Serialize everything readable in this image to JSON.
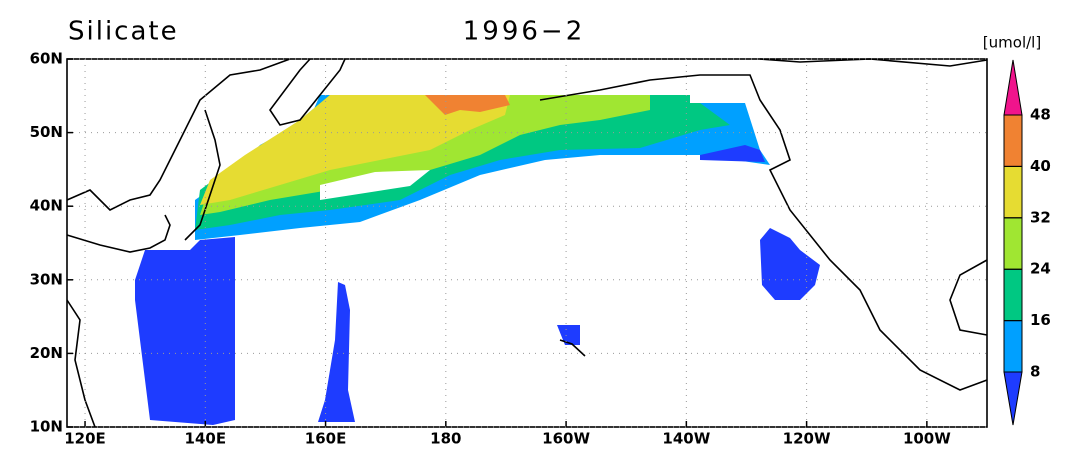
{
  "title": "Silicate",
  "subtitle": "1996−2",
  "units": "[umol/l]",
  "xlim": [
    117,
    270
  ],
  "ylim": [
    10,
    60
  ],
  "xticks": [
    {
      "value": 120,
      "label": "120E"
    },
    {
      "value": 140,
      "label": "140E"
    },
    {
      "value": 160,
      "label": "160E"
    },
    180,
    {
      "value": 200,
      "label": "160W"
    },
    {
      "value": 220,
      "label": "140W"
    },
    {
      "value": 240,
      "label": "120W"
    },
    {
      "value": 260,
      "label": "100W"
    }
  ],
  "yticks": [
    {
      "value": 10,
      "label": "10N"
    },
    {
      "value": 20,
      "label": "20N"
    },
    {
      "value": 30,
      "label": "30N"
    },
    {
      "value": 40,
      "label": "40N"
    },
    {
      "value": 50,
      "label": "50N"
    },
    {
      "value": 60,
      "label": "60N"
    }
  ],
  "grid": true,
  "colorbar": {
    "levels": [
      8,
      16,
      24,
      32,
      40,
      48
    ],
    "colors": [
      "#1e3cff",
      "#00a0ff",
      "#00c882",
      "#a0e632",
      "#e6dc32",
      "#f08232",
      "#f0148c"
    ]
  }
}
